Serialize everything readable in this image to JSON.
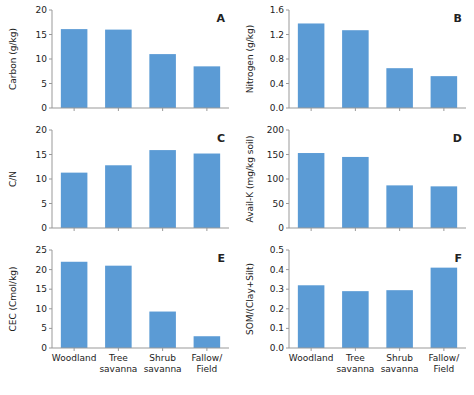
{
  "chart_data": [
    {
      "type": "bar",
      "annotations": [
        "A"
      ],
      "ylabel": "Carbon (g/kg)",
      "categories": [
        "Woodland",
        "Tree\nsavanna",
        "Shrub\nsavanna",
        "Fallow/\nField"
      ],
      "values": [
        16.1,
        16.0,
        11.0,
        8.5
      ],
      "color": "#5b9bd5",
      "ylim": [
        0,
        20
      ],
      "yticks": [
        0,
        5,
        10,
        15,
        20
      ],
      "grid": false,
      "tick_labels": "y"
    },
    {
      "type": "bar",
      "annotations": [
        "B"
      ],
      "ylabel": "Nitrogen (g/kg)",
      "categories": [
        "Woodland",
        "Tree\nsavanna",
        "Shrub\nsavanna",
        "Fallow/\nField"
      ],
      "values": [
        1.38,
        1.27,
        0.65,
        0.52
      ],
      "color": "#5b9bd5",
      "ylim": [
        0,
        1.6
      ],
      "yticks": [
        {
          "value": 0,
          "label": "0.0"
        },
        0.4,
        0.8,
        1.2,
        1.6
      ],
      "grid": false,
      "tick_labels": "y"
    },
    {
      "type": "bar",
      "annotations": [
        "C"
      ],
      "ylabel": "C/N",
      "categories": [
        "Woodland",
        "Tree\nsavanna",
        "Shrub\nsavanna",
        "Fallow/\nField"
      ],
      "values": [
        11.3,
        12.8,
        15.9,
        15.2
      ],
      "color": "#5b9bd5",
      "ylim": [
        0,
        20
      ],
      "yticks": [
        0,
        5,
        10,
        15,
        20
      ],
      "grid": false,
      "tick_labels": "y"
    },
    {
      "type": "bar",
      "annotations": [
        "D"
      ],
      "ylabel": "Avail-K (mg/kg soil)",
      "categories": [
        "Woodland",
        "Tree\nsavanna",
        "Shrub\nsavanna",
        "Fallow/\nField"
      ],
      "values": [
        153,
        145,
        87,
        85
      ],
      "color": "#5b9bd5",
      "ylim": [
        0,
        200
      ],
      "yticks": [
        0,
        50,
        100,
        150,
        200
      ],
      "grid": false,
      "tick_labels": "y"
    },
    {
      "type": "bar",
      "annotations": [
        "E"
      ],
      "ylabel": "CEC (Cmol/kg)",
      "categories": [
        "Woodland",
        "Tree\nsavanna",
        "Shrub\nsavanna",
        "Fallow/\nField"
      ],
      "values": [
        22.0,
        21.0,
        9.3,
        3.0
      ],
      "color": "#5b9bd5",
      "ylim": [
        0,
        25
      ],
      "yticks": [
        0,
        5,
        10,
        15,
        20,
        25
      ],
      "grid": false
    },
    {
      "type": "bar",
      "annotations": [
        "F"
      ],
      "ylabel": "SOM/(Clay+Silt)",
      "categories": [
        "Woodland",
        "Tree\nsavanna",
        "Shrub\nsavanna",
        "Fallow/\nField"
      ],
      "values": [
        0.32,
        0.29,
        0.295,
        0.41
      ],
      "color": "#5b9bd5",
      "ylim": [
        0,
        0.5
      ],
      "yticks": [
        {
          "value": 0,
          "label": "0.0"
        },
        0.1,
        0.2,
        0.3,
        0.4,
        0.5
      ],
      "grid": false
    }
  ]
}
